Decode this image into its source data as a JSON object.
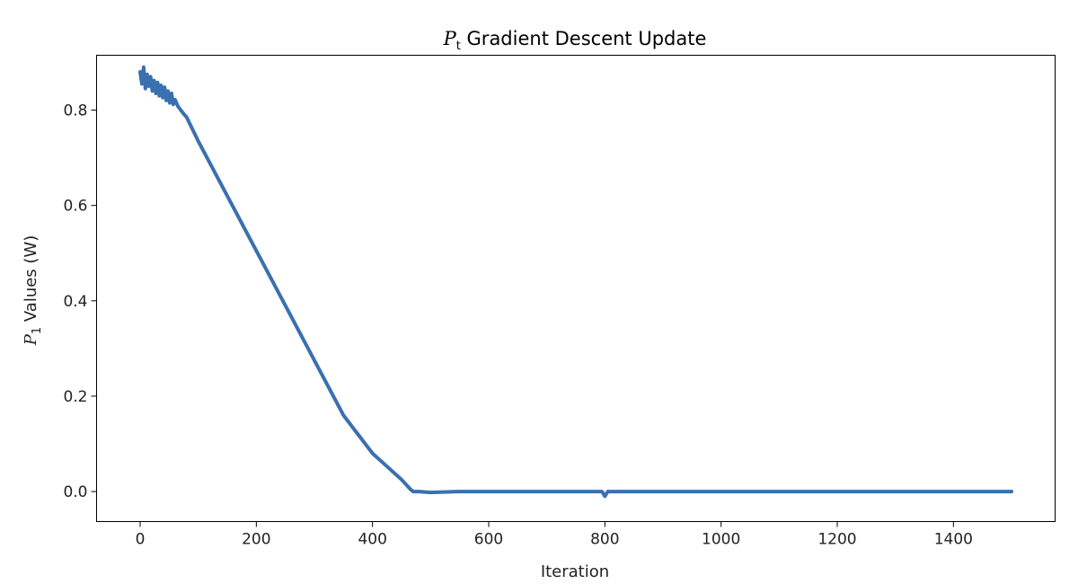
{
  "chart_data": {
    "type": "line",
    "title": {
      "symbol": "P",
      "subscript": "t",
      "text": " Gradient Descent Update"
    },
    "xlabel": "Iteration",
    "ylabel": {
      "symbol": "P",
      "subscript": "1",
      "text": " Values (W)"
    },
    "xlim": [
      -75,
      1575
    ],
    "ylim": [
      -0.063,
      0.915
    ],
    "xticks": [
      0,
      200,
      400,
      600,
      800,
      1000,
      1200,
      1400
    ],
    "xtick_labels": [
      "0",
      "200",
      "400",
      "600",
      "800",
      "1000",
      "1200",
      "1400"
    ],
    "yticks": [
      0.0,
      0.2,
      0.4,
      0.6,
      0.8
    ],
    "ytick_labels": [
      "0.0",
      "0.2",
      "0.4",
      "0.6",
      "0.8"
    ],
    "grid": false,
    "series": [
      {
        "color": "#3a70b0",
        "x": [
          0,
          3,
          6,
          9,
          12,
          15,
          18,
          21,
          24,
          27,
          30,
          33,
          36,
          39,
          42,
          45,
          48,
          51,
          54,
          57,
          60,
          65,
          70,
          75,
          80,
          90,
          100,
          150,
          200,
          250,
          300,
          350,
          400,
          450,
          465,
          470,
          480,
          500,
          550,
          600,
          650,
          700,
          750,
          795,
          800,
          805,
          850,
          900,
          1000,
          1100,
          1200,
          1300,
          1400,
          1500
        ],
        "y": [
          0.88,
          0.855,
          0.89,
          0.845,
          0.875,
          0.85,
          0.87,
          0.84,
          0.862,
          0.835,
          0.858,
          0.83,
          0.852,
          0.826,
          0.848,
          0.82,
          0.84,
          0.815,
          0.835,
          0.812,
          0.822,
          0.808,
          0.8,
          0.792,
          0.785,
          0.76,
          0.735,
          0.62,
          0.505,
          0.39,
          0.275,
          0.16,
          0.08,
          0.025,
          0.005,
          0.0,
          0.0,
          -0.002,
          0.0,
          0.0,
          0.0,
          0.0,
          0.0,
          0.0,
          -0.01,
          0.0,
          0.0,
          0.0,
          0.0,
          0.0,
          0.0,
          0.0,
          0.0,
          0.0
        ]
      }
    ]
  }
}
